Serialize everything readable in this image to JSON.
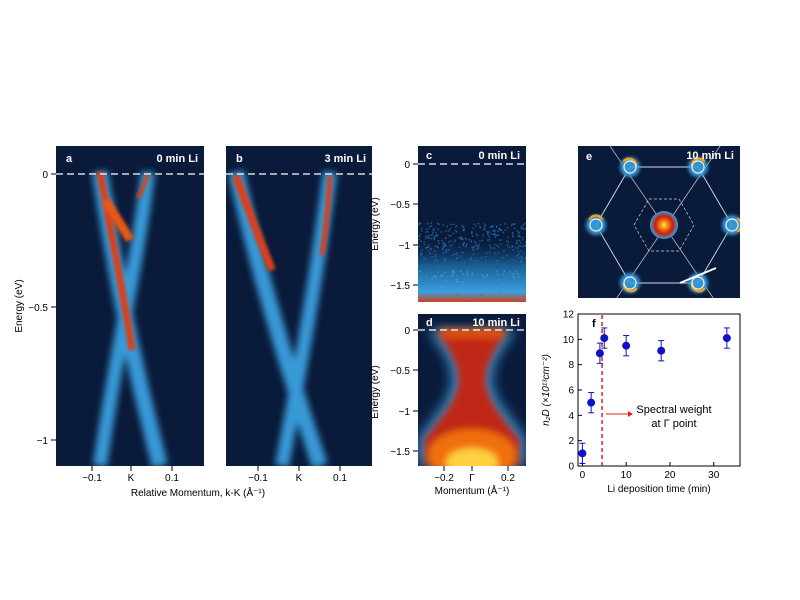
{
  "panels": {
    "a": {
      "letter": "a",
      "condition": "0 min Li",
      "y_label": "Energy (eV)",
      "y_ticks": [
        "0",
        "−0.5",
        "−1"
      ],
      "x_ticks": [
        "−0.1",
        "K",
        "0.1"
      ]
    },
    "b": {
      "letter": "b",
      "condition": "3 min Li",
      "x_ticks": [
        "−0.1",
        "K",
        "0.1"
      ]
    },
    "ab_x_label": "Relative Momentum, k-K (Å⁻¹)",
    "c": {
      "letter": "c",
      "condition": "0 min Li",
      "y_label": "Energy (eV)",
      "y_ticks": [
        "0",
        "−0.5",
        "−1",
        "−1.5"
      ]
    },
    "d": {
      "letter": "d",
      "condition": "10 min Li",
      "y_label": "Energy (eV)",
      "y_ticks": [
        "0",
        "−0.5",
        "−1",
        "−1.5"
      ],
      "x_ticks": [
        "−0.2",
        "Γ",
        "0.2"
      ],
      "x_label": "Momentum (Å⁻¹)"
    },
    "e": {
      "letter": "e",
      "condition": "10 min Li"
    },
    "f": {
      "letter": "f",
      "annotation_line1": "Spectral weight",
      "annotation_line2": "at Γ point"
    }
  },
  "colors": {
    "map_background": "#0a1a3a",
    "band_blue": "#3aa0e0",
    "band_red": "#d8401a",
    "point_blue": "#1010c8",
    "dashed_red": "#e02020"
  },
  "chart_data": {
    "type": "scatter",
    "panel": "f",
    "title": "",
    "xlabel": "Li deposition time (min)",
    "ylabel": "n₂D (×10¹³cm⁻²)",
    "xlim": [
      -1,
      36
    ],
    "ylim": [
      0,
      12
    ],
    "x_ticks": [
      0,
      10,
      20,
      30
    ],
    "y_ticks": [
      0,
      2,
      4,
      6,
      8,
      10,
      12
    ],
    "points": [
      {
        "x": 0,
        "y": 1.0,
        "err": 0.8
      },
      {
        "x": 2,
        "y": 5.0,
        "err": 0.8
      },
      {
        "x": 4,
        "y": 8.9,
        "err": 0.8
      },
      {
        "x": 5,
        "y": 10.1,
        "err": 0.8
      },
      {
        "x": 10,
        "y": 9.5,
        "err": 0.8
      },
      {
        "x": 18,
        "y": 9.1,
        "err": 0.8
      },
      {
        "x": 33,
        "y": 10.1,
        "err": 0.8
      }
    ],
    "threshold_x": 4.5
  }
}
